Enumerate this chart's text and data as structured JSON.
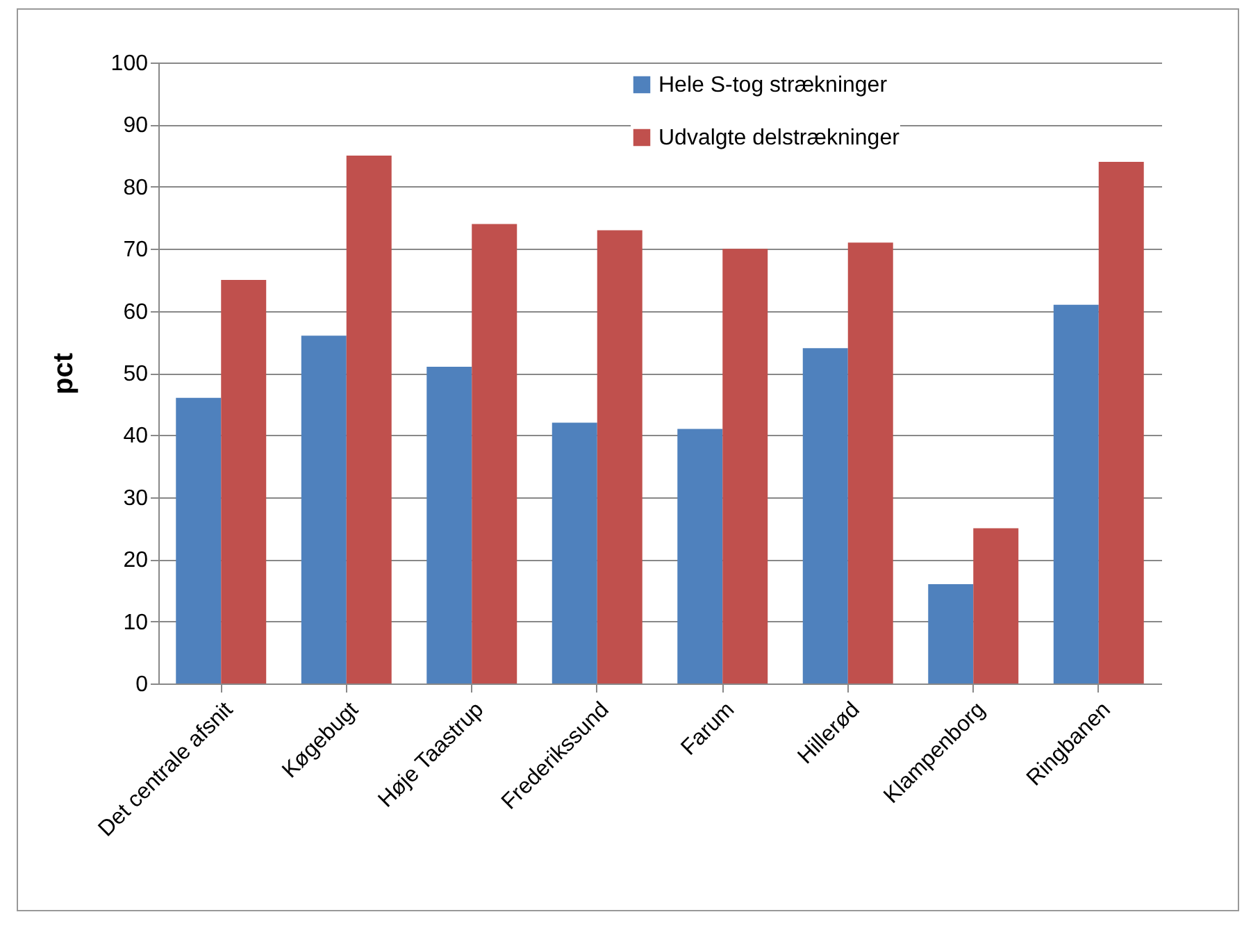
{
  "chart_data": {
    "type": "bar",
    "ylabel": "pct",
    "categories": [
      "Det centrale afsnit",
      "Køgebugt",
      "Høje Taastrup",
      "Frederikssund",
      "Farum",
      "Hillerød",
      "Klampenborg",
      "Ringbanen"
    ],
    "series": [
      {
        "name": "Hele S-tog strækninger",
        "color": "#4f81bd",
        "values": [
          46,
          56,
          51,
          42,
          41,
          54,
          16,
          61
        ]
      },
      {
        "name": "Udvalgte delstrækninger",
        "color": "#c0504d",
        "values": [
          65,
          85,
          74,
          73,
          70,
          71,
          25,
          84
        ]
      }
    ],
    "ylim": [
      0,
      100
    ],
    "yticks": [
      0,
      10,
      20,
      30,
      40,
      50,
      60,
      70,
      80,
      90,
      100
    ],
    "grid": "y",
    "legend": "top right"
  }
}
